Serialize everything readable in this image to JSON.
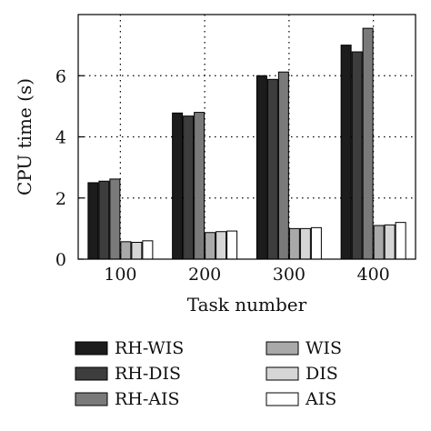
{
  "chart_data": {
    "type": "bar",
    "title": "",
    "xlabel": "Task number",
    "ylabel": "CPU time (s)",
    "categories": [
      "100",
      "200",
      "300",
      "400"
    ],
    "ylim": [
      0,
      8
    ],
    "yticks": [
      0,
      2,
      4,
      6
    ],
    "grid": "dotted",
    "legend_position": "bottom",
    "series": [
      {
        "name": "RH-WIS",
        "color": "#1c1c1c",
        "values": [
          2.5,
          4.78,
          6.0,
          7.0
        ]
      },
      {
        "name": "RH-DIS",
        "color": "#3d3d3d",
        "values": [
          2.55,
          4.68,
          5.88,
          6.78
        ]
      },
      {
        "name": "RH-AIS",
        "color": "#7a7a7a",
        "values": [
          2.62,
          4.8,
          6.12,
          7.55
        ]
      },
      {
        "name": "WIS",
        "color": "#a9a9a9",
        "values": [
          0.57,
          0.87,
          1.0,
          1.1
        ]
      },
      {
        "name": "DIS",
        "color": "#d6d6d6",
        "values": [
          0.55,
          0.9,
          1.0,
          1.12
        ]
      },
      {
        "name": "AIS",
        "color": "#ffffff",
        "values": [
          0.6,
          0.92,
          1.03,
          1.2
        ]
      }
    ]
  }
}
